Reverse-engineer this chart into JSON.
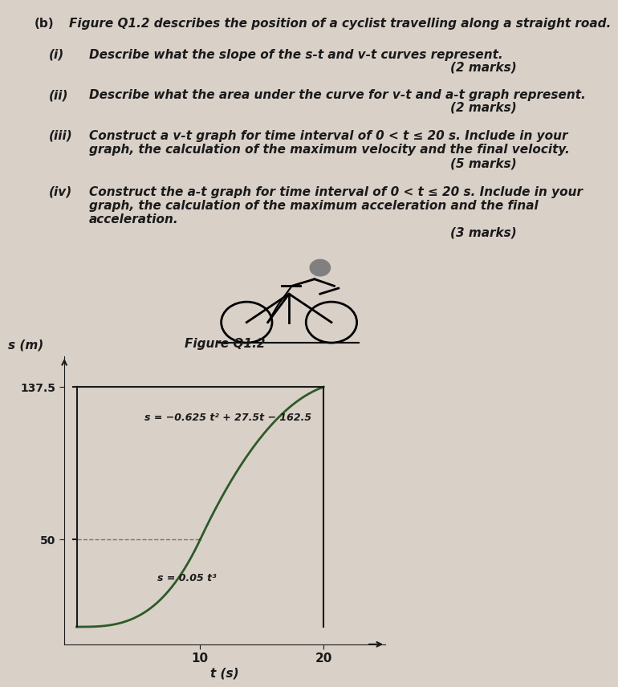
{
  "title_b": "(b)",
  "title_main": "Figure Q1.2 describes the position of a cyclist travelling along a straight road.",
  "q_i_label": "(i)",
  "q_i_text": "Describe what the slope of the s-t and v-t curves represent.",
  "q_i_marks": "(2 marks)",
  "q_ii_label": "(ii)",
  "q_ii_text": "Describe what the area under the curve for v-t and a-t graph represent.",
  "q_ii_marks": "(2 marks)",
  "q_iii_label": "(iii)",
  "q_iii_text": "Construct a v-t graph for time interval of 0 < t ≤ 20 s. Include in your\ngraph, the calculation of the maximum velocity and the final velocity.",
  "q_iii_marks": "(5 marks)",
  "q_iv_label": "(iv)",
  "q_iv_text": "Construct the a-t graph for time interval of 0 < t ≤ 20 s. Include in your\ngraph, the calculation of the maximum acceleration and the final\nacceleration.",
  "q_iv_marks": "(3 marks)",
  "graph_xlabel": "t (s)",
  "graph_ylabel": "s (m)",
  "graph_title": "Figure Q1.2",
  "eq1": "s = −0.625 t² + 27.5t − 162.5",
  "eq2": "s = 0.05 t³",
  "y_tick_137_5": 137.5,
  "y_tick_50": 50,
  "x_tick_10": 10,
  "x_tick_20": 20,
  "bg_color": "#d9d0c8",
  "text_color": "#1a1a1a",
  "curve_color": "#2d5a27",
  "border_color": "#1a1a1a"
}
